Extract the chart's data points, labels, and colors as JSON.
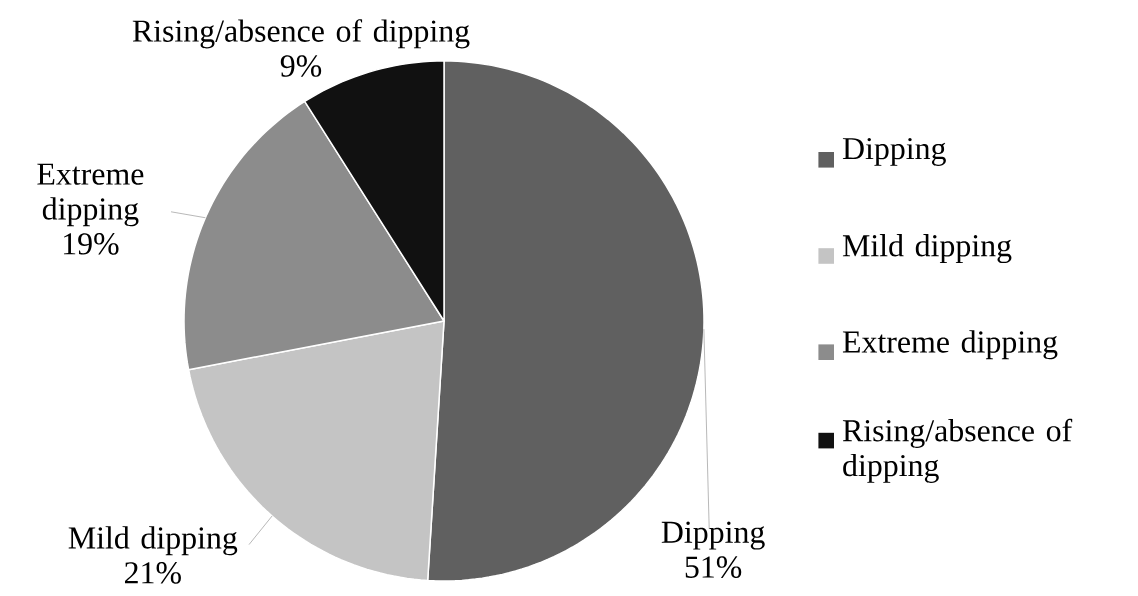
{
  "chart_data": {
    "type": "pie",
    "categories": [
      "Dipping",
      "Mild dipping",
      "Extreme dipping",
      "Rising/absence of dipping"
    ],
    "values": [
      51,
      21,
      19,
      9
    ],
    "value_labels": [
      "51%",
      "21%",
      "19%",
      "9%"
    ],
    "colors": [
      "#606060",
      "#c4c4c4",
      "#8c8c8c",
      "#111111"
    ],
    "legend": "right"
  }
}
